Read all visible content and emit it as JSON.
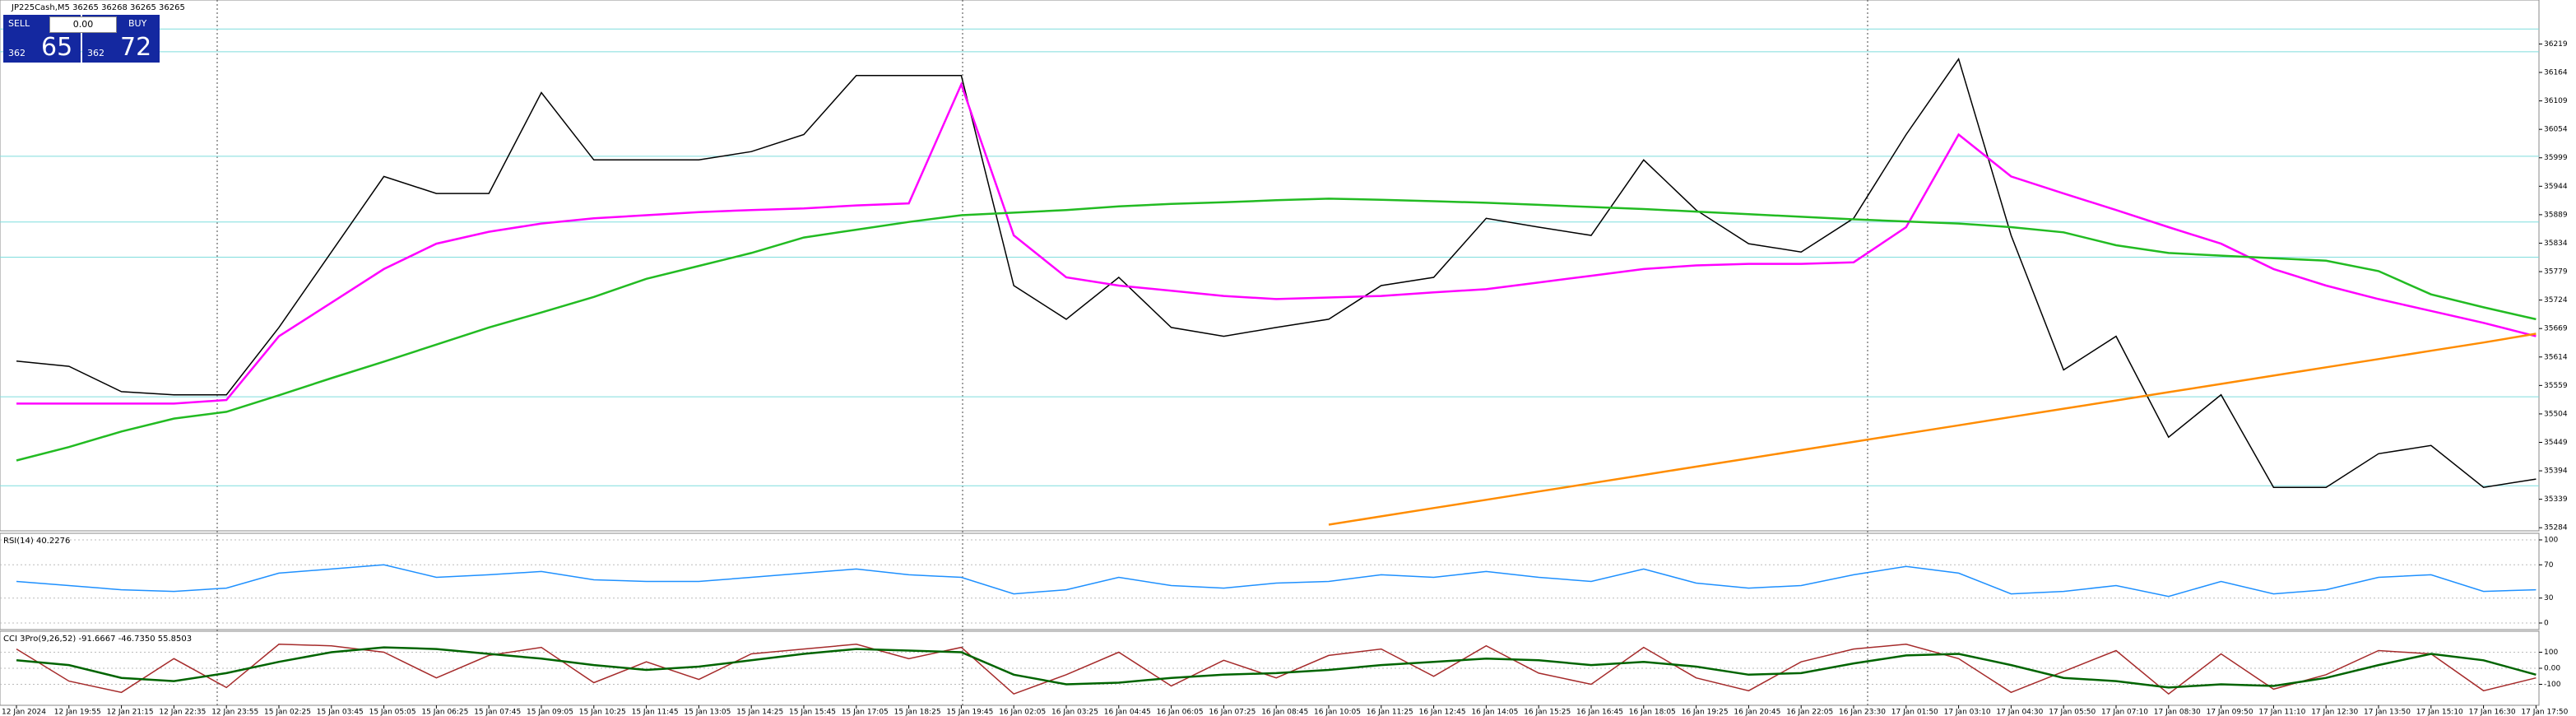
{
  "trade_panel": {
    "sell": "SELL",
    "buy": "BUY",
    "volume": "0.00",
    "sell_small": "362",
    "sell_big": "65",
    "buy_small": "362",
    "buy_big": "72"
  },
  "chart_data": [
    {
      "type": "line",
      "title": "JP225Cash,M5  36265 36268 36265 36265",
      "categories": [
        "12 Jan 2024",
        "12 Jan 19:55",
        "12 Jan 21:15",
        "12 Jan 22:35",
        "12 Jan 23:55",
        "15 Jan 02:25",
        "15 Jan 03:45",
        "15 Jan 05:05",
        "15 Jan 06:25",
        "15 Jan 07:45",
        "15 Jan 09:05",
        "15 Jan 10:25",
        "15 Jan 11:45",
        "15 Jan 13:05",
        "15 Jan 14:25",
        "15 Jan 15:45",
        "15 Jan 17:05",
        "15 Jan 18:25",
        "15 Jan 19:45",
        "16 Jan 02:05",
        "16 Jan 03:25",
        "16 Jan 04:45",
        "16 Jan 06:05",
        "16 Jan 07:25",
        "16 Jan 08:45",
        "16 Jan 10:05",
        "16 Jan 11:25",
        "16 Jan 12:45",
        "16 Jan 14:05",
        "16 Jan 15:25",
        "16 Jan 16:45",
        "16 Jan 18:05",
        "16 Jan 19:25",
        "16 Jan 20:45",
        "16 Jan 22:05",
        "16 Jan 23:30",
        "17 Jan 01:50",
        "17 Jan 03:10",
        "17 Jan 04:30",
        "17 Jan 05:50",
        "17 Jan 07:10",
        "17 Jan 08:30",
        "17 Jan 09:50",
        "17 Jan 11:10",
        "17 Jan 12:30",
        "17 Jan 13:50",
        "17 Jan 15:10",
        "17 Jan 16:30",
        "17 Jan 17:50"
      ],
      "series": [
        {
          "color": "#000000",
          "values": [
            35606,
            35596,
            35547,
            35541,
            35541,
            35671,
            35817,
            35963,
            35930,
            35930,
            36125,
            35995,
            35995,
            35995,
            36011,
            36044,
            36158,
            36158,
            36158,
            35752,
            35687,
            35768,
            35671,
            35654,
            35671,
            35687,
            35752,
            35768,
            35882,
            35865,
            35849,
            35995,
            35898,
            35833,
            35817,
            35882,
            36044,
            36190,
            35849,
            35589,
            35654,
            35459,
            35541,
            35362,
            35362,
            35427,
            35443,
            35362,
            35378
          ]
        },
        {
          "color": "#ff00ff",
          "values": [
            35524,
            35524,
            35524,
            35524,
            35531,
            35654,
            35719,
            35784,
            35833,
            35856,
            35872,
            35882,
            35888,
            35894,
            35898,
            35901,
            35907,
            35911,
            36141,
            35849,
            35768,
            35752,
            35742,
            35732,
            35726,
            35729,
            35732,
            35739,
            35745,
            35758,
            35771,
            35784,
            35791,
            35794,
            35794,
            35797,
            35865,
            36044,
            35963,
            35930,
            35898,
            35865,
            35833,
            35784,
            35752,
            35726,
            35703,
            35680,
            35654
          ]
        },
        {
          "color": "#22bb22",
          "values": [
            35414,
            35440,
            35470,
            35495,
            35508,
            35540,
            35573,
            35605,
            35638,
            35671,
            35700,
            35730,
            35765,
            35790,
            35815,
            35845,
            35860,
            35875,
            35888,
            35893,
            35898,
            35905,
            35910,
            35913,
            35917,
            35920,
            35918,
            35915,
            35912,
            35908,
            35904,
            35900,
            35895,
            35890,
            35885,
            35880,
            35876,
            35872,
            35865,
            35855,
            35830,
            35815,
            35810,
            35805,
            35800,
            35780,
            35735,
            35710,
            35687
          ]
        },
        {
          "color": "#ff8c00",
          "values": [
            null,
            null,
            null,
            null,
            null,
            null,
            null,
            null,
            null,
            null,
            null,
            null,
            null,
            null,
            null,
            null,
            null,
            null,
            null,
            null,
            null,
            null,
            null,
            null,
            null,
            35290,
            35306,
            35322,
            35338,
            35354,
            35370,
            35386,
            35402,
            35418,
            35434,
            35450,
            35466,
            35482,
            35498,
            35514,
            35530,
            35546,
            35562,
            35578,
            35594,
            35610,
            35626,
            35642,
            35659
          ]
        }
      ],
      "levels": [
        36248,
        36204,
        36002,
        35875,
        35807,
        35537,
        35365
      ],
      "level_color": "#7fdddd",
      "ylim": [
        35278,
        36304
      ],
      "yticks": [
        35284,
        35339,
        35394,
        35449,
        35504,
        35559,
        35614,
        35669,
        35724,
        35779,
        35834,
        35889,
        35944,
        35999,
        36054,
        36109,
        36164,
        36219
      ]
    },
    {
      "type": "line",
      "title": "RSI(14) 40.2276",
      "series": [
        {
          "color": "#1e90ff",
          "values": [
            50,
            45,
            40,
            38,
            42,
            60,
            65,
            70,
            55,
            58,
            62,
            52,
            50,
            50,
            55,
            60,
            65,
            58,
            55,
            35,
            40,
            55,
            45,
            42,
            48,
            50,
            58,
            55,
            62,
            55,
            50,
            65,
            48,
            42,
            45,
            58,
            68,
            60,
            35,
            38,
            45,
            32,
            50,
            35,
            40,
            55,
            58,
            38,
            40
          ]
        }
      ],
      "ylim": [
        0,
        100
      ],
      "yticks": [
        0,
        30,
        70,
        100
      ]
    },
    {
      "type": "line",
      "title": "CCI 3Pro(9,26,52) -91.6667 -46.7350 55.8503",
      "series": [
        {
          "color": "#a52a2a",
          "values": [
            120,
            -80,
            -150,
            60,
            -120,
            150,
            140,
            100,
            -60,
            80,
            130,
            -90,
            40,
            -70,
            90,
            120,
            150,
            60,
            130,
            -160,
            -40,
            100,
            -110,
            50,
            -60,
            80,
            120,
            -50,
            140,
            -30,
            -100,
            130,
            -60,
            -140,
            40,
            120,
            150,
            60,
            -150,
            -20,
            110,
            -160,
            90,
            -130,
            -40,
            110,
            90,
            -140,
            -60
          ]
        },
        {
          "color": "#006400",
          "values": [
            50,
            20,
            -60,
            -80,
            -30,
            40,
            100,
            130,
            120,
            90,
            60,
            20,
            -10,
            10,
            50,
            90,
            120,
            110,
            100,
            -40,
            -100,
            -90,
            -60,
            -40,
            -30,
            -10,
            20,
            40,
            60,
            50,
            20,
            40,
            10,
            -40,
            -30,
            30,
            80,
            90,
            20,
            -60,
            -80,
            -120,
            -100,
            -110,
            -60,
            20,
            90,
            50,
            -40
          ]
        }
      ],
      "ylim": [
        -200,
        200
      ],
      "yticks": [
        -100,
        {
          "value": 0,
          "label": "0.00"
        },
        100
      ]
    }
  ]
}
